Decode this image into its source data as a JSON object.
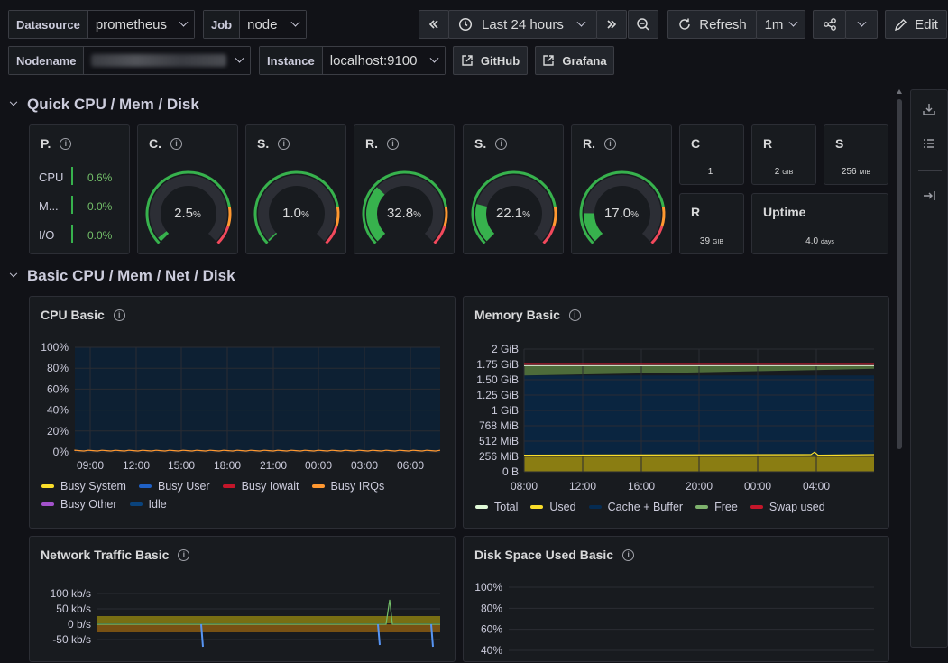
{
  "toolbar": {
    "datasource_label": "Datasource",
    "datasource_value": "prometheus",
    "job_label": "Job",
    "job_value": "node",
    "nodename_label": "Nodename",
    "instance_label": "Instance",
    "instance_value": "localhost:9100",
    "github_label": "GitHub",
    "grafana_label": "Grafana",
    "time_range": "Last 24 hours",
    "refresh_label": "Refresh",
    "refresh_interval": "1m",
    "edit_label": "Edit"
  },
  "rows": [
    {
      "title": "Quick CPU / Mem / Disk"
    },
    {
      "title": "Basic CPU / Mem / Net / Disk"
    }
  ],
  "pressure": {
    "title": "P.",
    "items": [
      {
        "label": "CPU",
        "value": "0.6%"
      },
      {
        "label": "M...",
        "value": "0.0%"
      },
      {
        "label": "I/O",
        "value": "0.0%"
      }
    ]
  },
  "gauges": [
    {
      "title": "C.",
      "value": "2.5",
      "unit": "%",
      "pct": 2.5
    },
    {
      "title": "S.",
      "value": "1.0",
      "unit": "%",
      "pct": 1.0
    },
    {
      "title": "R.",
      "value": "32.8",
      "unit": "%",
      "pct": 32.8
    },
    {
      "title": "S.",
      "value": "22.1",
      "unit": "%",
      "pct": 22.1
    },
    {
      "title": "R.",
      "value": "17.0",
      "unit": "%",
      "pct": 17.0
    }
  ],
  "stats": [
    {
      "title": "C",
      "value": "1",
      "unit": ""
    },
    {
      "title": "R",
      "value": "2",
      "unit": "GIB"
    },
    {
      "title": "S",
      "value": "256",
      "unit": "MIB"
    },
    {
      "title": "R",
      "value": "39",
      "unit": "GIB"
    },
    {
      "title": "Uptime",
      "value": "4.0",
      "unit": "days"
    }
  ],
  "panels": {
    "cpu": {
      "title": "CPU Basic",
      "y_ticks": [
        "100%",
        "80%",
        "60%",
        "40%",
        "20%",
        "0%"
      ],
      "x_ticks": [
        "09:00",
        "12:00",
        "15:00",
        "18:00",
        "21:00",
        "00:00",
        "03:00",
        "06:00"
      ],
      "legend": [
        {
          "name": "Busy System",
          "color": "#fade2a"
        },
        {
          "name": "Busy User",
          "color": "#1f60c4"
        },
        {
          "name": "Busy Iowait",
          "color": "#c4162a"
        },
        {
          "name": "Busy IRQs",
          "color": "#ff9830"
        },
        {
          "name": "Busy Other",
          "color": "#a352cc"
        },
        {
          "name": "Idle",
          "color": "#0a437c"
        }
      ]
    },
    "memory": {
      "title": "Memory Basic",
      "y_ticks": [
        "2 GiB",
        "1.75 GiB",
        "1.50 GiB",
        "1.25 GiB",
        "1 GiB",
        "768 MiB",
        "512 MiB",
        "256 MiB",
        "0 B"
      ],
      "x_ticks": [
        "08:00",
        "12:00",
        "16:00",
        "20:00",
        "00:00",
        "04:00"
      ],
      "legend": [
        {
          "name": "Total",
          "color": "#e0f9d7"
        },
        {
          "name": "Used",
          "color": "#fade2a"
        },
        {
          "name": "Cache + Buffer",
          "color": "#052b51"
        },
        {
          "name": "Free",
          "color": "#7eb26d"
        },
        {
          "name": "Swap used",
          "color": "#c4162a"
        }
      ]
    },
    "network": {
      "title": "Network Traffic Basic",
      "y_ticks": [
        "100 kb/s",
        "50 kb/s",
        "0 b/s",
        "-50 kb/s"
      ]
    },
    "disk": {
      "title": "Disk Space Used Basic",
      "y_ticks": [
        "100%",
        "80%",
        "60%",
        "40%"
      ]
    }
  }
}
